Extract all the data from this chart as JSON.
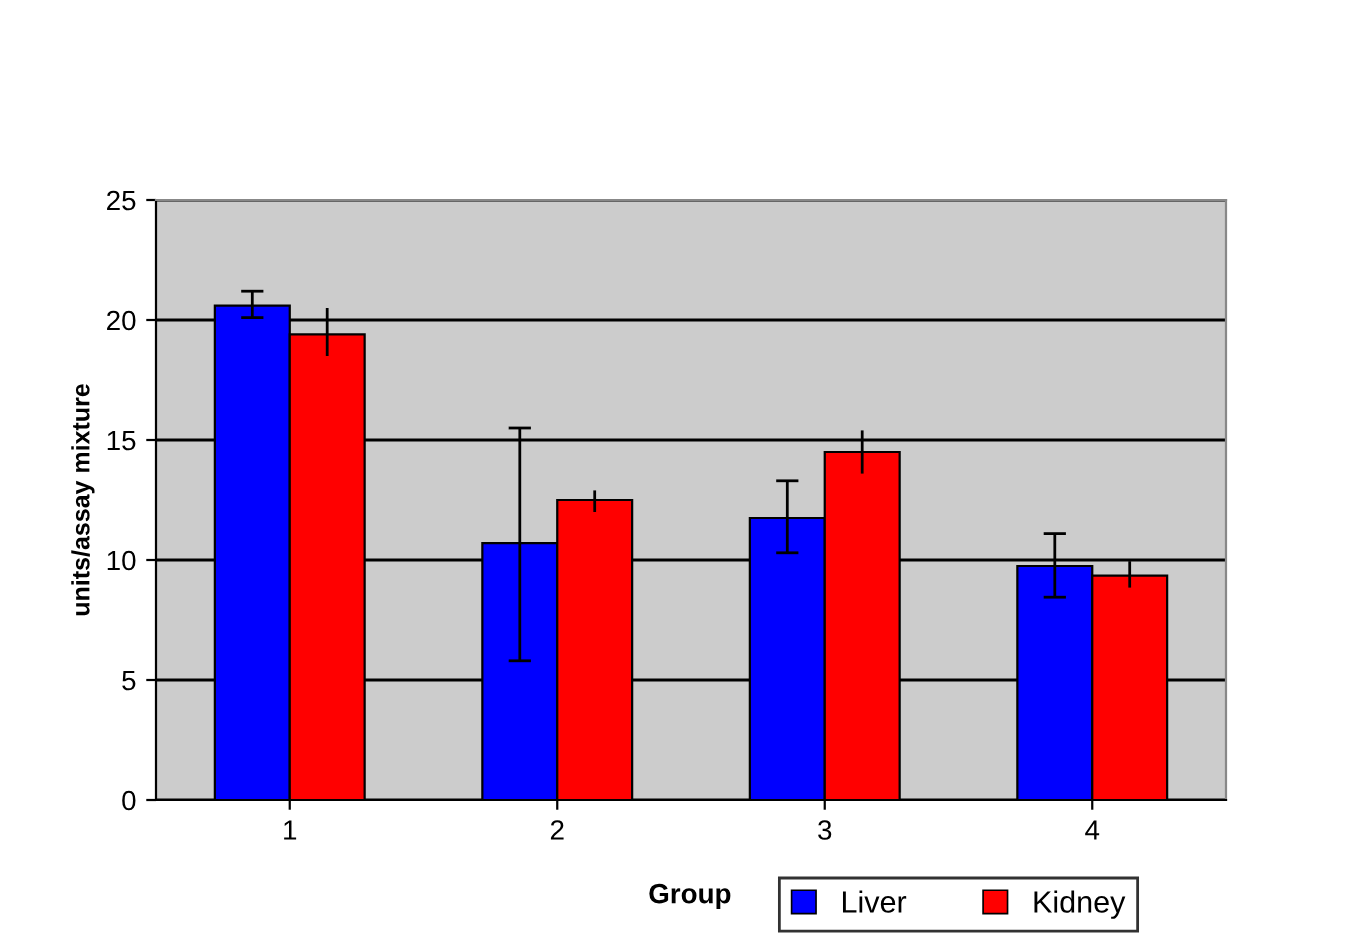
{
  "chart_data": {
    "type": "bar",
    "xlabel": "Group",
    "ylabel": "units/assay mixture",
    "categories": [
      "1",
      "2",
      "3",
      "4"
    ],
    "series": [
      {
        "name": "Liver",
        "color": "#0000ff",
        "values": [
          20.6,
          10.7,
          11.75,
          9.75
        ],
        "errors": [
          [
            20.1,
            21.2
          ],
          [
            5.8,
            15.5
          ],
          [
            10.3,
            13.3
          ],
          [
            8.45,
            11.1
          ]
        ]
      },
      {
        "name": "Kidney",
        "color": "#ff0000",
        "values": [
          19.4,
          12.5,
          14.5,
          9.35
        ],
        "errors": [
          [
            18.5,
            20.5
          ],
          [
            12.0,
            12.9
          ],
          [
            13.6,
            15.4
          ],
          [
            8.85,
            9.95
          ]
        ]
      }
    ],
    "ylim": [
      0,
      25
    ],
    "yticks": [
      0,
      5,
      10,
      15,
      20,
      25
    ],
    "grid": "y",
    "legend": "bottom"
  }
}
